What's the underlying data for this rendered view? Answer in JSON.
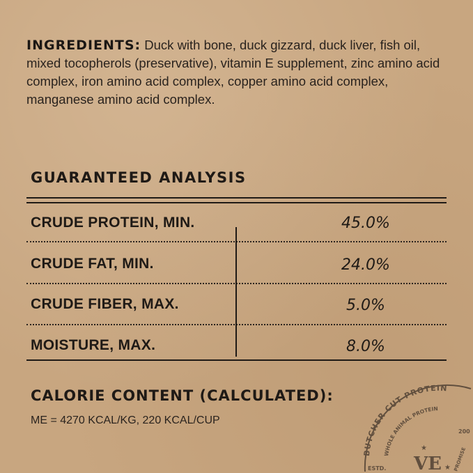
{
  "ingredients": {
    "label": "INGREDIENTS:",
    "text": "Duck with bone, duck gizzard, duck liver, fish oil, mixed tocopherols (preservative), vitamin E supplement, zinc amino acid complex, iron amino acid complex, copper amino acid complex, manganese amino acid complex."
  },
  "analysis": {
    "title": "GUARANTEED ANALYSIS",
    "rows": [
      {
        "label": "CRUDE PROTEIN, MIN.",
        "value": "45.0%"
      },
      {
        "label": "CRUDE FAT, MIN.",
        "value": "24.0%"
      },
      {
        "label": "CRUDE FIBER, MAX.",
        "value": "5.0%"
      },
      {
        "label": "MOISTURE, MAX.",
        "value": "8.0%"
      }
    ]
  },
  "calorie": {
    "title": "CALORIE CONTENT (CALCULATED):",
    "value": "ME = 4270 KCAL/KG, 220 KCAL/CUP"
  },
  "stamp": {
    "outer_text": "BUTCHER CUT PROTEIN",
    "inner_text": "WHOLE ANIMAL PROTEIN",
    "monogram": "VE",
    "estd": "ESTD.",
    "year_fragment": "200",
    "promise_fragment": "PROMISE",
    "color": "#4a3c30"
  },
  "colors": {
    "background": "#c8a680",
    "ink": "#1f1a16"
  }
}
